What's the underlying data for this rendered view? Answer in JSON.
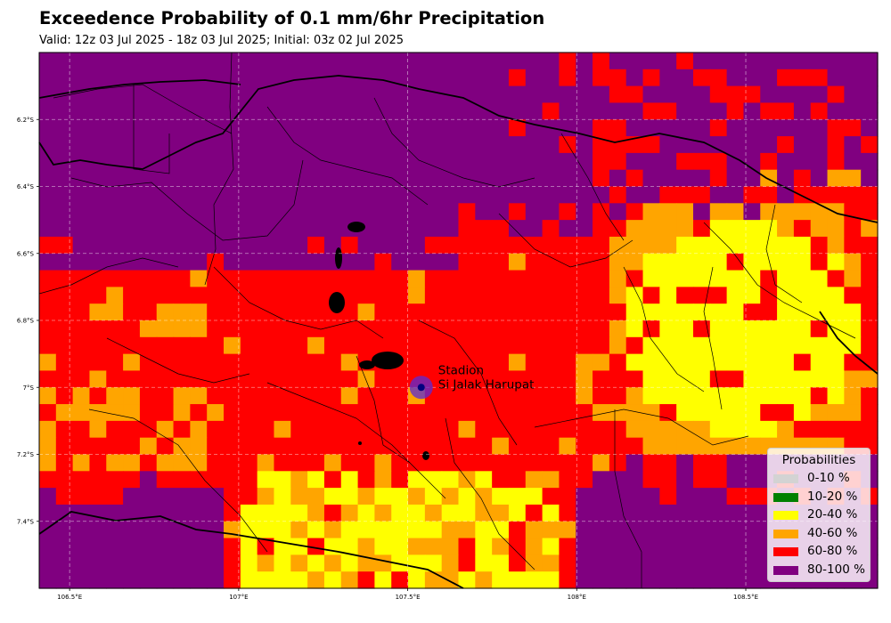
{
  "title": "Exceedence Probability of 0.1 mm/6hr Precipitation",
  "subtitle": "Valid: 12z 03 Jul 2025 - 18z 03 Jul 2025; Initial: 03z 02 Jul 2025",
  "map": {
    "extent": {
      "lon_min": 106.41,
      "lon_max": 108.89,
      "lat_min": -7.6,
      "lat_max": -6.0
    },
    "grid": {
      "cols": 50,
      "rows": 32
    },
    "lon_ticks": [
      {
        "value": 106.5,
        "label": "106.5°E"
      },
      {
        "value": 107.0,
        "label": "107°E"
      },
      {
        "value": 107.5,
        "label": "107.5°E"
      },
      {
        "value": 108.0,
        "label": "108°E"
      },
      {
        "value": 108.5,
        "label": "108.5°E"
      }
    ],
    "lat_ticks": [
      {
        "value": -6.2,
        "label": "6.2°S"
      },
      {
        "value": -6.4,
        "label": "6.4°S"
      },
      {
        "value": -6.6,
        "label": "6.6°S"
      },
      {
        "value": -6.8,
        "label": "6.8°S"
      },
      {
        "value": -7.0,
        "label": "7°S"
      },
      {
        "value": -7.2,
        "label": "7.2°S"
      },
      {
        "value": -7.4,
        "label": "7.4°S"
      }
    ],
    "station": {
      "name_line1": "Stadion",
      "name_line2": "Si Jalak Harupat",
      "lon": 107.54,
      "lat": -7.0
    },
    "colors": {
      "purple": "#800080",
      "red": "#ff0000",
      "orange": "#ffa500",
      "yellow": "#ffff00"
    }
  },
  "legend": {
    "title": "Probabilities",
    "items": [
      {
        "label": "0-10 %",
        "color": "#d3d3d3"
      },
      {
        "label": "10-20 %",
        "color": "#008000"
      },
      {
        "label": "20-40 %",
        "color": "#ffff00"
      },
      {
        "label": "40-60 %",
        "color": "#ffa500"
      },
      {
        "label": "60-80 %",
        "color": "#ff0000"
      },
      {
        "label": "80-100 %",
        "color": "#800080"
      }
    ]
  }
}
